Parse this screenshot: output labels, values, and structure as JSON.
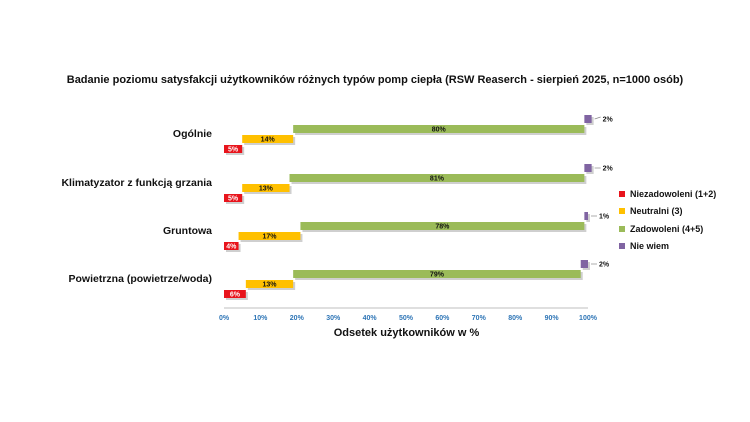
{
  "chart_data": {
    "type": "bar",
    "orientation": "horizontal",
    "title": "Badanie poziomu satysfakcji użytkowników różnych typów pomp ciepła (RSW Reaserch - sierpień 2025, n=1000 osób)",
    "xlabel": "Odsetek użytkowników w %",
    "ylabel": "",
    "xlim": [
      0,
      100
    ],
    "x_ticks": [
      "0%",
      "10%",
      "20%",
      "30%",
      "40%",
      "50%",
      "60%",
      "70%",
      "80%",
      "90%",
      "100%"
    ],
    "categories": [
      "Ogólnie",
      "Klimatyzator z funkcją grzania",
      "Gruntowa",
      "Powietrzna (powietrze/woda)"
    ],
    "series": [
      {
        "name": "Niezadowoleni (1+2)",
        "color": "#e8141c",
        "values": [
          5,
          5,
          4,
          6
        ],
        "labels": [
          "5%",
          "5%",
          "4%",
          "6%"
        ]
      },
      {
        "name": "Neutralni (3)",
        "color": "#ffc000",
        "values": [
          14,
          13,
          17,
          13
        ],
        "labels": [
          "14%",
          "13%",
          "17%",
          "13%"
        ]
      },
      {
        "name": "Zadowoleni (4+5)",
        "color": "#9bbb59",
        "values": [
          80,
          81,
          78,
          79
        ],
        "labels": [
          "80%",
          "81%",
          "78%",
          "79%"
        ]
      },
      {
        "name": "Nie wiem",
        "color": "#8064a2",
        "values": [
          2,
          2,
          1,
          2
        ],
        "labels": [
          "2%",
          "2%",
          "1%",
          "2%"
        ]
      }
    ],
    "stacked": "cascading",
    "legend_position": "right",
    "grid": false
  }
}
